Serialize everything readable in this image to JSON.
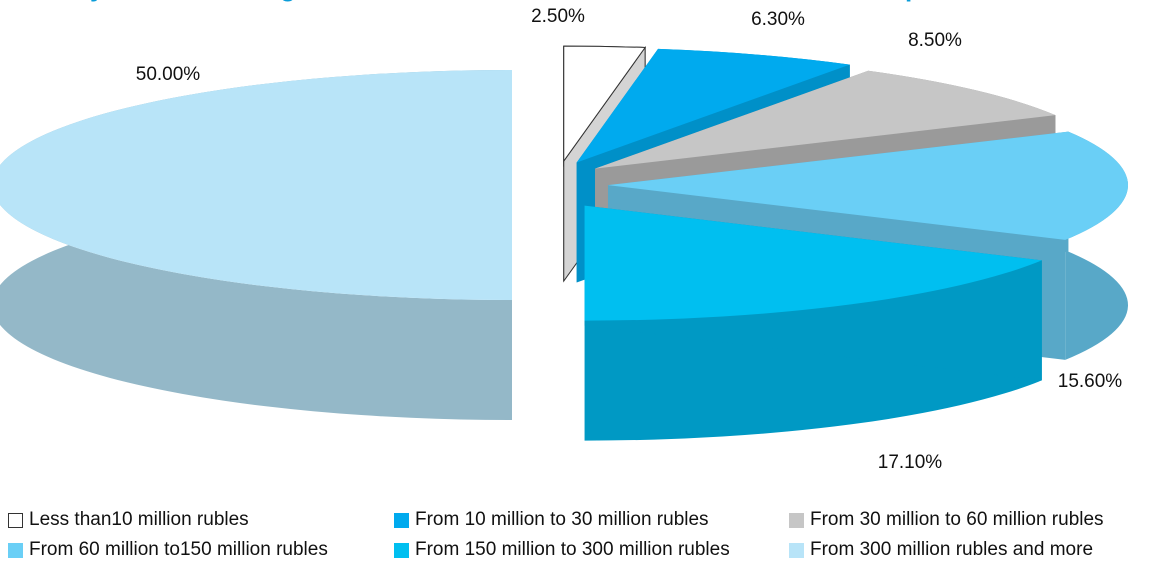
{
  "chart_data": {
    "type": "pie",
    "title_fragment": "y",
    "title_fragment_2": "g",
    "title_fragment_3": "p",
    "slices": [
      {
        "label": "Less than10 million rubles",
        "value": 2.5,
        "display": "2.50%",
        "color": "#ffffff"
      },
      {
        "label": "From 10 million to 30 million rubles",
        "value": 6.3,
        "display": "6.30%",
        "color": "#00aaee"
      },
      {
        "label": "From 30 million to 60 million rubles",
        "value": 8.5,
        "display": "8.50%",
        "color": "#c6c6c6"
      },
      {
        "label": "From 60 million to150 million rubles",
        "value": 15.6,
        "display": "15.60%",
        "color": "#6acff6"
      },
      {
        "label": "From 150 million to 300 million rubles",
        "value": 17.1,
        "display": "17.10%",
        "color": "#00bff0"
      },
      {
        "label": "From 300 million rubles and more",
        "value": 50.0,
        "display": "50.00%",
        "color": "#b8e4f8"
      }
    ]
  },
  "legend": {
    "items": [
      {
        "label": "Less than10 million rubles",
        "color": "#ffffff"
      },
      {
        "label": "From 10 million to 30 million rubles",
        "color": "#00aaee"
      },
      {
        "label": "From 30 million to 60 million rubles",
        "color": "#c6c6c6"
      },
      {
        "label": "From 60 million to150 million rubles",
        "color": "#6acff6"
      },
      {
        "label": "From 150 million to 300 million rubles",
        "color": "#00bff0"
      },
      {
        "label": "From 300 million rubles and more",
        "color": "#b8e4f8"
      }
    ]
  }
}
